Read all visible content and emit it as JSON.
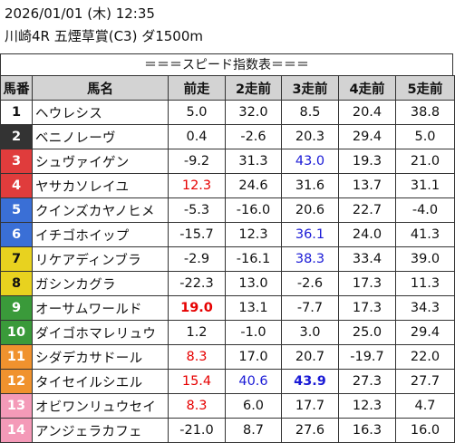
{
  "header": {
    "date_line": "2026/01/01 (木) 12:35",
    "race_line": "川崎4R 五煙草賞(C3) ダ1500m"
  },
  "banner": "＝＝＝スピード指数表＝＝＝",
  "columns": [
    "馬番",
    "馬名",
    "前走",
    "2走前",
    "3走前",
    "4走前",
    "5走前"
  ],
  "colors": {
    "frame1": "#ffffff",
    "frame2": "#333333",
    "frame3": "#e03c3c",
    "frame4": "#3a6fd6",
    "frame5": "#e8d21f",
    "frame6": "#3a9a3a",
    "frame7": "#f0922e",
    "frame8": "#f49ab8",
    "highlight_red": "#e60000",
    "highlight_blue": "#1a1ad6",
    "header_bg": "#d3d3d3"
  },
  "rows": [
    {
      "no": "1",
      "frame": 1,
      "name": "ヘウレシス",
      "vals": [
        "5.0",
        "32.0",
        "8.5",
        "20.4",
        "38.8"
      ],
      "styles": [
        "",
        "",
        "",
        "",
        ""
      ]
    },
    {
      "no": "2",
      "frame": 2,
      "name": "ベニノレーヴ",
      "vals": [
        "0.4",
        "-2.6",
        "20.3",
        "29.4",
        "5.0"
      ],
      "styles": [
        "",
        "",
        "",
        "",
        ""
      ]
    },
    {
      "no": "3",
      "frame": 3,
      "name": "シュヴァイゲン",
      "vals": [
        "-9.2",
        "31.3",
        "43.0",
        "19.3",
        "21.0"
      ],
      "styles": [
        "",
        "",
        "blue",
        "",
        ""
      ]
    },
    {
      "no": "4",
      "frame": 3,
      "name": "ヤサカソレイユ",
      "vals": [
        "12.3",
        "24.6",
        "31.6",
        "13.7",
        "31.1"
      ],
      "styles": [
        "red",
        "",
        "",
        "",
        ""
      ]
    },
    {
      "no": "5",
      "frame": 4,
      "name": "クインズカヤノヒメ",
      "vals": [
        "-5.3",
        "-16.0",
        "20.6",
        "22.7",
        "-4.0"
      ],
      "styles": [
        "",
        "",
        "",
        "",
        ""
      ]
    },
    {
      "no": "6",
      "frame": 4,
      "name": "イチゴホイップ",
      "vals": [
        "-15.7",
        "12.3",
        "36.1",
        "24.0",
        "41.3"
      ],
      "styles": [
        "",
        "",
        "blue",
        "",
        ""
      ]
    },
    {
      "no": "7",
      "frame": 5,
      "name": "リケアディンブラ",
      "vals": [
        "-2.9",
        "-16.1",
        "38.3",
        "33.4",
        "39.0"
      ],
      "styles": [
        "",
        "",
        "blue",
        "",
        ""
      ]
    },
    {
      "no": "8",
      "frame": 5,
      "name": "ガシンカグラ",
      "vals": [
        "-22.3",
        "13.0",
        "-2.6",
        "17.3",
        "11.3"
      ],
      "styles": [
        "",
        "",
        "",
        "",
        ""
      ]
    },
    {
      "no": "9",
      "frame": 6,
      "name": "オーサムワールド",
      "vals": [
        "19.0",
        "13.1",
        "-7.7",
        "17.3",
        "34.3"
      ],
      "styles": [
        "red bold",
        "",
        "",
        "",
        ""
      ]
    },
    {
      "no": "10",
      "frame": 6,
      "name": "ダイゴホマレリュウ",
      "vals": [
        "1.2",
        "-1.0",
        "3.0",
        "25.0",
        "29.4"
      ],
      "styles": [
        "",
        "",
        "",
        "",
        ""
      ]
    },
    {
      "no": "11",
      "frame": 7,
      "name": "シダデカサドール",
      "vals": [
        "8.3",
        "17.0",
        "20.7",
        "-19.7",
        "22.0"
      ],
      "styles": [
        "red",
        "",
        "",
        "",
        ""
      ]
    },
    {
      "no": "12",
      "frame": 7,
      "name": "タイセイルシエル",
      "vals": [
        "15.4",
        "40.6",
        "43.9",
        "27.3",
        "27.7"
      ],
      "styles": [
        "red",
        "blue",
        "blue bold",
        "",
        ""
      ]
    },
    {
      "no": "13",
      "frame": 8,
      "name": "オビワンリュウセイ",
      "vals": [
        "8.3",
        "6.0",
        "17.7",
        "12.3",
        "4.7"
      ],
      "styles": [
        "red",
        "",
        "",
        "",
        ""
      ]
    },
    {
      "no": "14",
      "frame": 8,
      "name": "アンジェラカフェ",
      "vals": [
        "-21.0",
        "8.7",
        "27.6",
        "16.3",
        "16.0"
      ],
      "styles": [
        "",
        "",
        "",
        "",
        ""
      ]
    }
  ]
}
